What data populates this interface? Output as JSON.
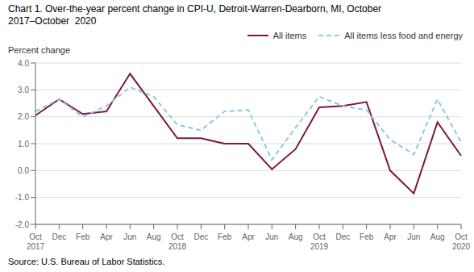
{
  "chart_data": {
    "type": "line",
    "title": "Chart 1. Over-the-year percent change in CPI-U, Detroit-Warren-Dearborn, MI, October\n2017–October  2020",
    "y_label": "Percent change",
    "annotations": [
      "Source: U.S. Bureau of Labor Statistics."
    ],
    "categories": [
      "Oct\n2017",
      "Dec",
      "Feb",
      "Apr",
      "Jun",
      "Aug",
      "Oct\n2018",
      "Dec",
      "Feb",
      "Apr",
      "Jun",
      "Aug",
      "Oct\n2019",
      "Dec",
      "Feb",
      "Apr",
      "Jun",
      "Aug",
      "Oct\n2020"
    ],
    "series": [
      {
        "name": "All items",
        "color": "#7b1a3b",
        "line_style": "solid",
        "values": [
          2.05,
          2.65,
          2.1,
          2.2,
          3.6,
          2.4,
          1.2,
          1.2,
          1.0,
          1.0,
          0.05,
          0.8,
          2.35,
          2.4,
          2.55,
          0.0,
          -0.85,
          1.8,
          0.55
        ]
      },
      {
        "name": "All items less food and energy",
        "color": "#8ec8e8",
        "line_style": "dashed",
        "values": [
          2.2,
          2.65,
          2.0,
          2.4,
          3.1,
          2.75,
          1.7,
          1.5,
          2.2,
          2.25,
          0.4,
          1.6,
          2.75,
          2.4,
          2.25,
          1.15,
          0.6,
          2.65,
          1.05
        ]
      }
    ],
    "ylim": [
      -2.0,
      4.0
    ],
    "yticks": [
      {
        "value": -2.0,
        "label": "-2.0"
      },
      {
        "value": -1.0,
        "label": "-1.0"
      },
      {
        "value": 0.0,
        "label": "0.0"
      },
      {
        "value": 1.0,
        "label": "1.0"
      },
      {
        "value": 2.0,
        "label": "2.0"
      },
      {
        "value": 3.0,
        "label": "3.0"
      },
      {
        "value": 4.0,
        "label": "4.0"
      }
    ],
    "grid": true,
    "legend": "upper right"
  }
}
